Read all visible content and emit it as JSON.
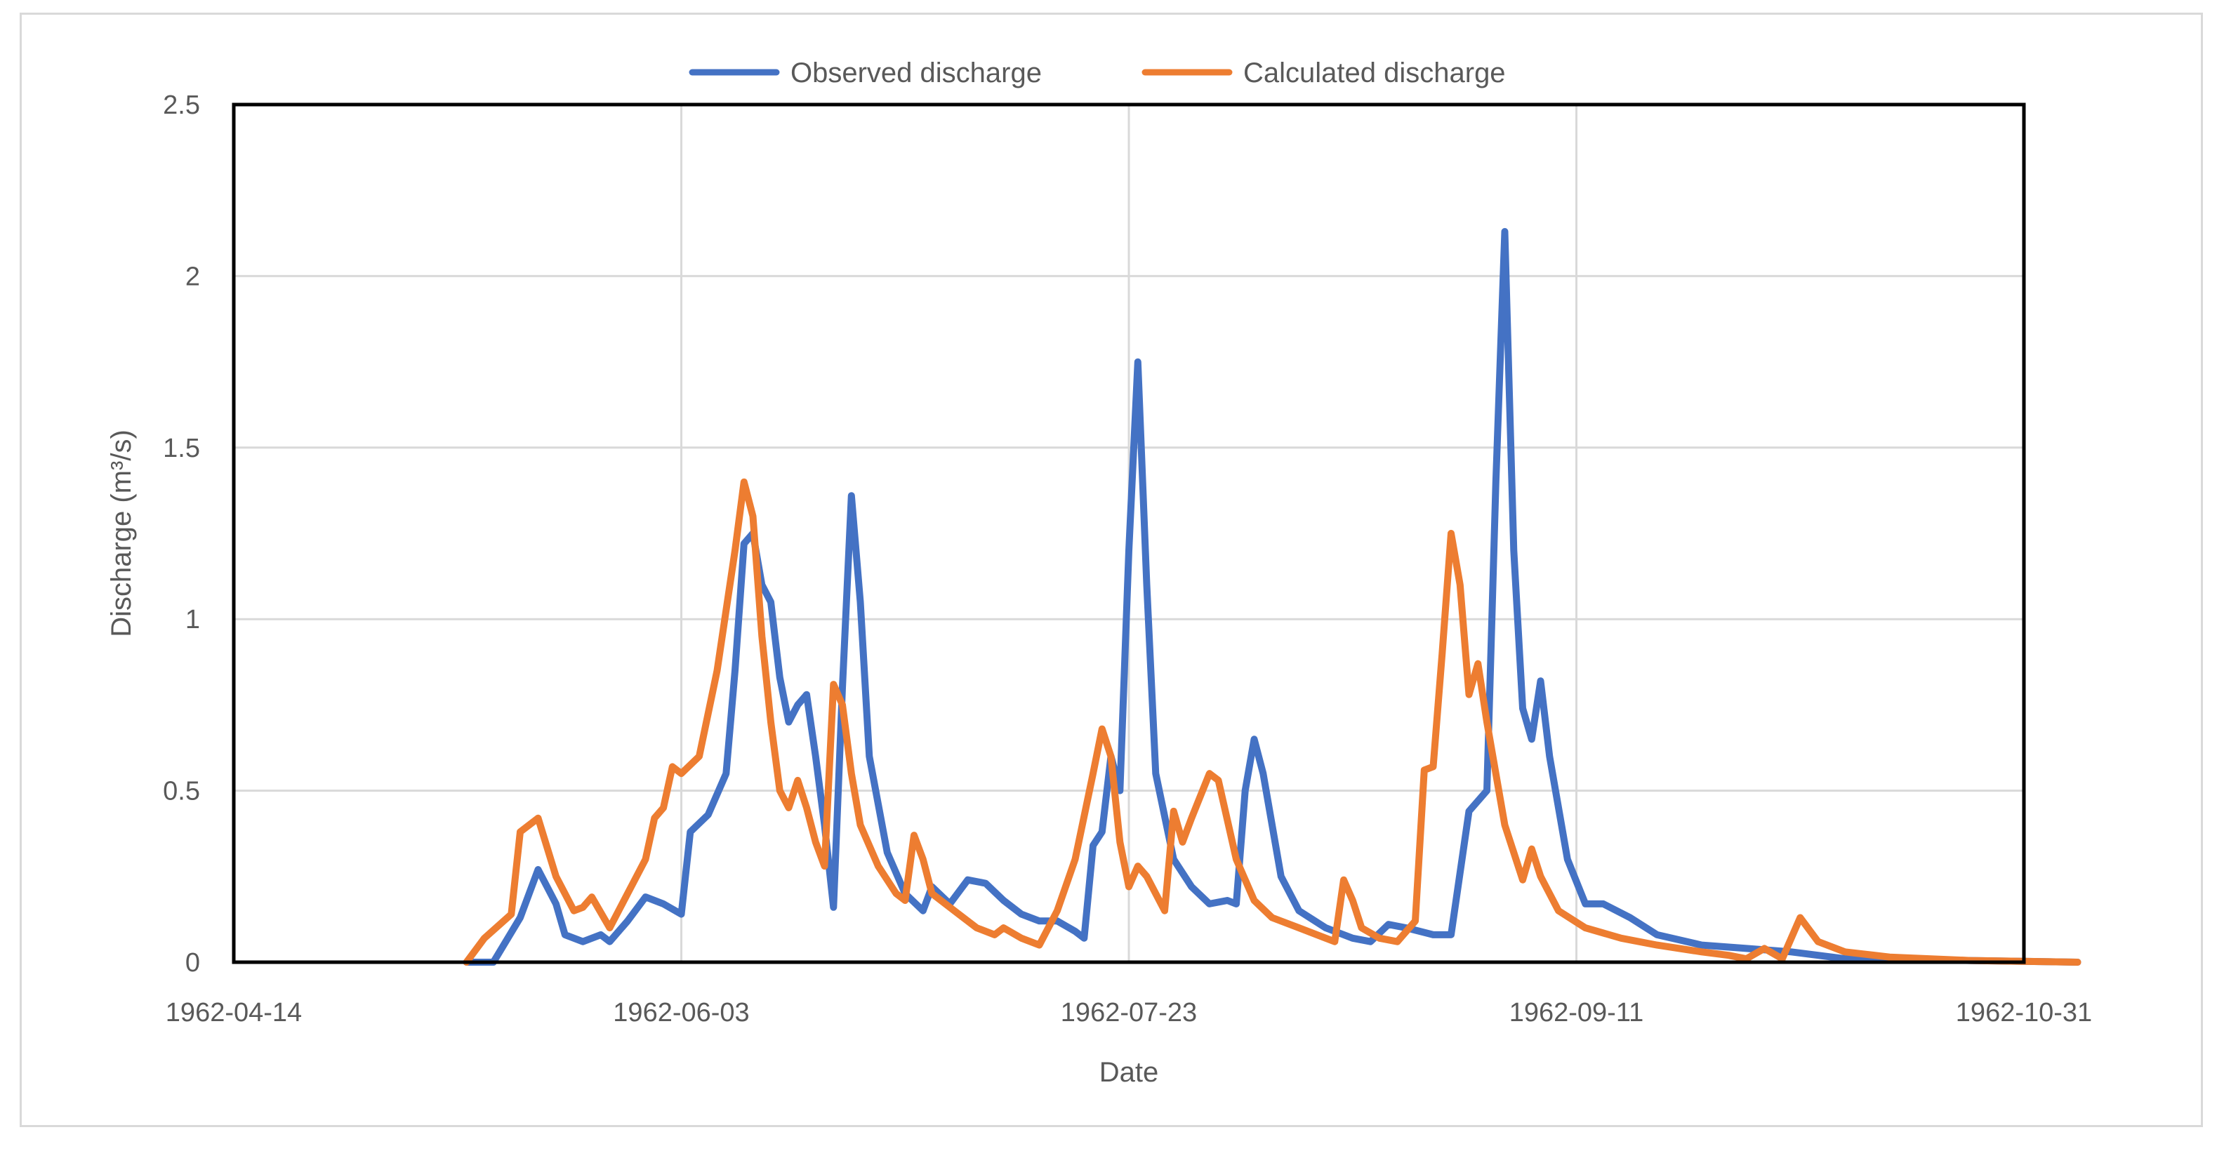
{
  "chart_data": {
    "type": "line",
    "title": "",
    "xlabel": "Date",
    "ylabel": "Discharge (m³/s)",
    "x_axis": {
      "type": "date",
      "min": "1962-04-14",
      "max": "1962-10-31",
      "ticks": [
        "1962-04-14",
        "1962-06-03",
        "1962-07-23",
        "1962-09-11",
        "1962-10-31"
      ]
    },
    "y_axis": {
      "min": 0,
      "max": 2.5,
      "ticks": [
        "0",
        "0.5",
        "1",
        "1.5",
        "2",
        "2.5"
      ]
    },
    "grid": true,
    "legend_position": "top-center",
    "series": [
      {
        "name": "Observed discharge",
        "color": "#4472C4",
        "points": [
          [
            "1962-05-10",
            0
          ],
          [
            "1962-05-13",
            0
          ],
          [
            "1962-05-16",
            0.13
          ],
          [
            "1962-05-18",
            0.27
          ],
          [
            "1962-05-20",
            0.17
          ],
          [
            "1962-05-21",
            0.08
          ],
          [
            "1962-05-23",
            0.06
          ],
          [
            "1962-05-25",
            0.08
          ],
          [
            "1962-05-26",
            0.06
          ],
          [
            "1962-05-28",
            0.12
          ],
          [
            "1962-05-30",
            0.19
          ],
          [
            "1962-06-01",
            0.17
          ],
          [
            "1962-06-03",
            0.14
          ],
          [
            "1962-06-04",
            0.38
          ],
          [
            "1962-06-06",
            0.43
          ],
          [
            "1962-06-08",
            0.55
          ],
          [
            "1962-06-09",
            0.85
          ],
          [
            "1962-06-10",
            1.22
          ],
          [
            "1962-06-11",
            1.25
          ],
          [
            "1962-06-12",
            1.1
          ],
          [
            "1962-06-13",
            1.05
          ],
          [
            "1962-06-14",
            0.83
          ],
          [
            "1962-06-15",
            0.7
          ],
          [
            "1962-06-16",
            0.75
          ],
          [
            "1962-06-17",
            0.78
          ],
          [
            "1962-06-18",
            0.6
          ],
          [
            "1962-06-19",
            0.4
          ],
          [
            "1962-06-20",
            0.16
          ],
          [
            "1962-06-21",
            0.8
          ],
          [
            "1962-06-22",
            1.36
          ],
          [
            "1962-06-23",
            1.05
          ],
          [
            "1962-06-24",
            0.6
          ],
          [
            "1962-06-26",
            0.32
          ],
          [
            "1962-06-28",
            0.2
          ],
          [
            "1962-06-30",
            0.15
          ],
          [
            "1962-07-01",
            0.22
          ],
          [
            "1962-07-03",
            0.17
          ],
          [
            "1962-07-05",
            0.24
          ],
          [
            "1962-07-07",
            0.23
          ],
          [
            "1962-07-09",
            0.18
          ],
          [
            "1962-07-11",
            0.14
          ],
          [
            "1962-07-13",
            0.12
          ],
          [
            "1962-07-15",
            0.12
          ],
          [
            "1962-07-17",
            0.09
          ],
          [
            "1962-07-18",
            0.07
          ],
          [
            "1962-07-19",
            0.34
          ],
          [
            "1962-07-20",
            0.38
          ],
          [
            "1962-07-21",
            0.6
          ],
          [
            "1962-07-22",
            0.5
          ],
          [
            "1962-07-23",
            1.2
          ],
          [
            "1962-07-24",
            1.75
          ],
          [
            "1962-07-25",
            1.1
          ],
          [
            "1962-07-26",
            0.55
          ],
          [
            "1962-07-28",
            0.3
          ],
          [
            "1962-07-30",
            0.22
          ],
          [
            "1962-08-01",
            0.17
          ],
          [
            "1962-08-03",
            0.18
          ],
          [
            "1962-08-04",
            0.17
          ],
          [
            "1962-08-05",
            0.5
          ],
          [
            "1962-08-06",
            0.65
          ],
          [
            "1962-08-07",
            0.55
          ],
          [
            "1962-08-09",
            0.25
          ],
          [
            "1962-08-11",
            0.15
          ],
          [
            "1962-08-14",
            0.1
          ],
          [
            "1962-08-17",
            0.07
          ],
          [
            "1962-08-19",
            0.06
          ],
          [
            "1962-08-21",
            0.11
          ],
          [
            "1962-08-23",
            0.1
          ],
          [
            "1962-08-26",
            0.08
          ],
          [
            "1962-08-28",
            0.08
          ],
          [
            "1962-08-30",
            0.44
          ],
          [
            "1962-09-01",
            0.5
          ],
          [
            "1962-09-02",
            1.4
          ],
          [
            "1962-09-03",
            2.13
          ],
          [
            "1962-09-04",
            1.2
          ],
          [
            "1962-09-05",
            0.74
          ],
          [
            "1962-09-06",
            0.65
          ],
          [
            "1962-09-07",
            0.82
          ],
          [
            "1962-09-08",
            0.6
          ],
          [
            "1962-09-10",
            0.3
          ],
          [
            "1962-09-12",
            0.17
          ],
          [
            "1962-09-14",
            0.17
          ],
          [
            "1962-09-17",
            0.13
          ],
          [
            "1962-09-20",
            0.08
          ],
          [
            "1962-09-25",
            0.05
          ],
          [
            "1962-09-30",
            0.04
          ],
          [
            "1962-10-05",
            0.03
          ],
          [
            "1962-10-08",
            0.02
          ],
          [
            "1962-10-11",
            0.01
          ],
          [
            "1962-10-16",
            0.01
          ],
          [
            "1962-10-25",
            0.005
          ],
          [
            "1962-11-06",
            0
          ]
        ]
      },
      {
        "name": "Calculated discharge",
        "color": "#ED7D31",
        "points": [
          [
            "1962-05-10",
            0
          ],
          [
            "1962-05-12",
            0.07
          ],
          [
            "1962-05-15",
            0.14
          ],
          [
            "1962-05-16",
            0.38
          ],
          [
            "1962-05-17",
            0.4
          ],
          [
            "1962-05-18",
            0.42
          ],
          [
            "1962-05-20",
            0.25
          ],
          [
            "1962-05-22",
            0.15
          ],
          [
            "1962-05-23",
            0.16
          ],
          [
            "1962-05-24",
            0.19
          ],
          [
            "1962-05-26",
            0.1
          ],
          [
            "1962-05-28",
            0.2
          ],
          [
            "1962-05-30",
            0.3
          ],
          [
            "1962-05-31",
            0.42
          ],
          [
            "1962-06-01",
            0.45
          ],
          [
            "1962-06-02",
            0.57
          ],
          [
            "1962-06-03",
            0.55
          ],
          [
            "1962-06-05",
            0.6
          ],
          [
            "1962-06-07",
            0.85
          ],
          [
            "1962-06-09",
            1.2
          ],
          [
            "1962-06-10",
            1.4
          ],
          [
            "1962-06-11",
            1.3
          ],
          [
            "1962-06-12",
            0.95
          ],
          [
            "1962-06-13",
            0.7
          ],
          [
            "1962-06-14",
            0.5
          ],
          [
            "1962-06-15",
            0.45
          ],
          [
            "1962-06-16",
            0.53
          ],
          [
            "1962-06-17",
            0.45
          ],
          [
            "1962-06-18",
            0.35
          ],
          [
            "1962-06-19",
            0.28
          ],
          [
            "1962-06-20",
            0.81
          ],
          [
            "1962-06-21",
            0.75
          ],
          [
            "1962-06-22",
            0.55
          ],
          [
            "1962-06-23",
            0.4
          ],
          [
            "1962-06-25",
            0.28
          ],
          [
            "1962-06-27",
            0.2
          ],
          [
            "1962-06-28",
            0.18
          ],
          [
            "1962-06-29",
            0.37
          ],
          [
            "1962-06-30",
            0.3
          ],
          [
            "1962-07-01",
            0.2
          ],
          [
            "1962-07-04",
            0.14
          ],
          [
            "1962-07-06",
            0.1
          ],
          [
            "1962-07-08",
            0.08
          ],
          [
            "1962-07-09",
            0.1
          ],
          [
            "1962-07-11",
            0.07
          ],
          [
            "1962-07-13",
            0.05
          ],
          [
            "1962-07-15",
            0.15
          ],
          [
            "1962-07-17",
            0.3
          ],
          [
            "1962-07-19",
            0.55
          ],
          [
            "1962-07-20",
            0.68
          ],
          [
            "1962-07-21",
            0.6
          ],
          [
            "1962-07-22",
            0.35
          ],
          [
            "1962-07-23",
            0.22
          ],
          [
            "1962-07-24",
            0.28
          ],
          [
            "1962-07-25",
            0.25
          ],
          [
            "1962-07-27",
            0.15
          ],
          [
            "1962-07-28",
            0.44
          ],
          [
            "1962-07-29",
            0.35
          ],
          [
            "1962-07-30",
            0.42
          ],
          [
            "1962-08-01",
            0.55
          ],
          [
            "1962-08-02",
            0.53
          ],
          [
            "1962-08-04",
            0.3
          ],
          [
            "1962-08-06",
            0.18
          ],
          [
            "1962-08-08",
            0.13
          ],
          [
            "1962-08-11",
            0.1
          ],
          [
            "1962-08-14",
            0.07
          ],
          [
            "1962-08-15",
            0.06
          ],
          [
            "1962-08-16",
            0.24
          ],
          [
            "1962-08-17",
            0.18
          ],
          [
            "1962-08-18",
            0.1
          ],
          [
            "1962-08-20",
            0.07
          ],
          [
            "1962-08-22",
            0.06
          ],
          [
            "1962-08-24",
            0.12
          ],
          [
            "1962-08-25",
            0.56
          ],
          [
            "1962-08-26",
            0.57
          ],
          [
            "1962-08-27",
            0.9
          ],
          [
            "1962-08-28",
            1.25
          ],
          [
            "1962-08-29",
            1.1
          ],
          [
            "1962-08-30",
            0.78
          ],
          [
            "1962-08-31",
            0.87
          ],
          [
            "1962-09-01",
            0.7
          ],
          [
            "1962-09-03",
            0.4
          ],
          [
            "1962-09-05",
            0.24
          ],
          [
            "1962-09-06",
            0.33
          ],
          [
            "1962-09-07",
            0.25
          ],
          [
            "1962-09-09",
            0.15
          ],
          [
            "1962-09-12",
            0.1
          ],
          [
            "1962-09-16",
            0.07
          ],
          [
            "1962-09-20",
            0.05
          ],
          [
            "1962-09-25",
            0.03
          ],
          [
            "1962-09-28",
            0.02
          ],
          [
            "1962-09-30",
            0.01
          ],
          [
            "1962-10-02",
            0.04
          ],
          [
            "1962-10-04",
            0.01
          ],
          [
            "1962-10-06",
            0.13
          ],
          [
            "1962-10-08",
            0.06
          ],
          [
            "1962-10-11",
            0.03
          ],
          [
            "1962-10-16",
            0.015
          ],
          [
            "1962-10-25",
            0.005
          ],
          [
            "1962-11-06",
            0
          ]
        ]
      }
    ]
  }
}
